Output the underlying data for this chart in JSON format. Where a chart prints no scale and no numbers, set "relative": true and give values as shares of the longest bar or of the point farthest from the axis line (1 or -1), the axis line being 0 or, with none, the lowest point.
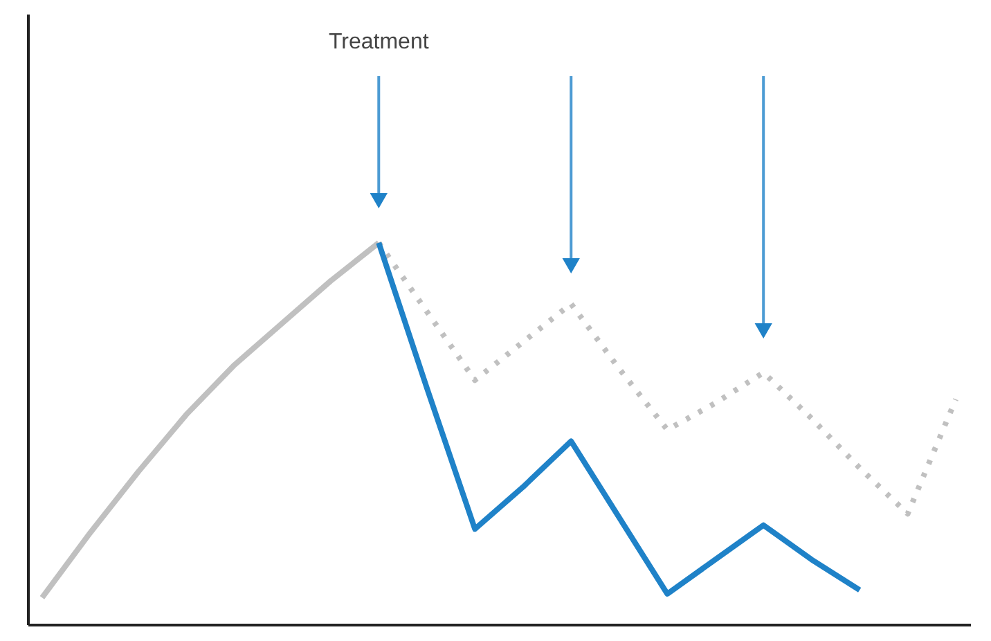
{
  "chart_data": {
    "type": "line",
    "relative": true,
    "categories": [
      null,
      null,
      null,
      null,
      null,
      null,
      null,
      null,
      null,
      null,
      null,
      null,
      null,
      null,
      null,
      null,
      null,
      null,
      null,
      null
    ],
    "series": [
      {
        "color": "#c0c0c0",
        "line_style": "solid",
        "values": [
          0.07,
          0.24,
          0.4,
          0.55,
          0.68,
          0.79,
          0.9,
          1.0,
          null,
          null,
          null,
          null,
          null,
          null,
          null,
          null,
          null,
          null,
          null,
          null
        ]
      },
      {
        "color": "#c0c0c0",
        "line_style": "dotted",
        "values": [
          null,
          null,
          null,
          null,
          null,
          null,
          null,
          1.0,
          0.82,
          0.64,
          0.74,
          0.84,
          0.67,
          0.51,
          0.58,
          0.66,
          0.54,
          0.41,
          0.29,
          0.59
        ]
      },
      {
        "color": "#1f82c8",
        "line_style": "solid",
        "values": [
          null,
          null,
          null,
          null,
          null,
          null,
          null,
          1.0,
          0.62,
          0.25,
          0.36,
          0.48,
          0.28,
          0.08,
          0.17,
          0.26,
          0.17,
          0.09,
          null,
          null
        ]
      }
    ],
    "annotations": [
      "Treatment"
    ],
    "grid": false,
    "legend": false,
    "marker": "none"
  }
}
